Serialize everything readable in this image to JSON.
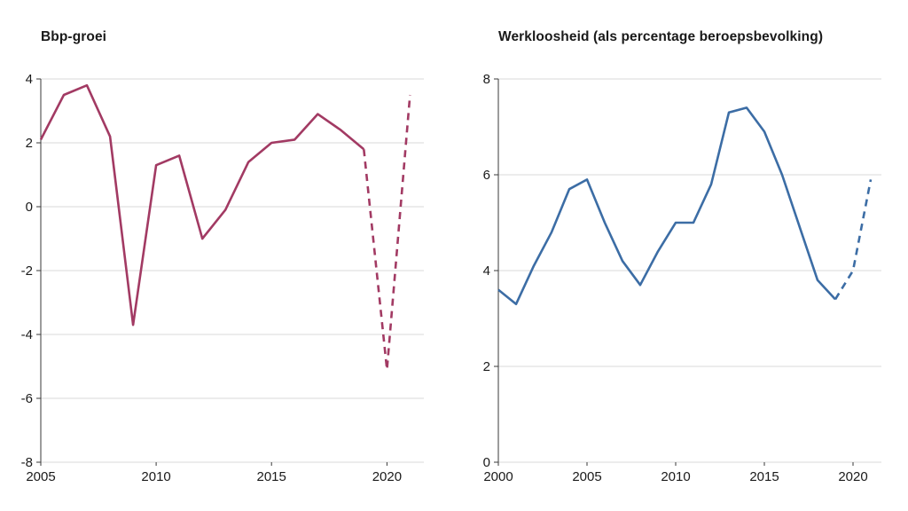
{
  "colors": {
    "background": "#ffffff",
    "grid": "#d9d9d9",
    "axis": "#3a3a3a",
    "text": "#1a1a1a"
  },
  "chart_data": [
    {
      "type": "line",
      "title": "Bbp-groei",
      "color": "#a23a63",
      "x": [
        2005,
        2006,
        2007,
        2008,
        2009,
        2010,
        2011,
        2012,
        2013,
        2014,
        2015,
        2016,
        2017,
        2018,
        2019,
        2020,
        2021
      ],
      "values": [
        2.1,
        3.5,
        3.8,
        2.2,
        -3.7,
        1.3,
        1.6,
        -1.0,
        -0.1,
        1.4,
        2.0,
        2.1,
        2.9,
        2.4,
        1.8,
        -5.1,
        3.5
      ],
      "dashed_from_x": 2019,
      "xlim": [
        2005,
        2021.6
      ],
      "ylim": [
        -8,
        4
      ],
      "yticks": [
        4,
        2,
        0,
        -2,
        -4,
        -6,
        -8
      ],
      "xticks": [
        2005,
        2010,
        2015,
        2020
      ],
      "grid": true,
      "legend": "none"
    },
    {
      "type": "line",
      "title": "Werkloosheid (als percentage beroepsbevolking)",
      "color": "#3c6da5",
      "x": [
        2000,
        2001,
        2002,
        2003,
        2004,
        2005,
        2006,
        2007,
        2008,
        2009,
        2010,
        2011,
        2012,
        2013,
        2014,
        2015,
        2016,
        2017,
        2018,
        2019,
        2020,
        2021
      ],
      "values": [
        3.6,
        3.3,
        4.1,
        4.8,
        5.7,
        5.9,
        5.0,
        4.2,
        3.7,
        4.4,
        5.0,
        5.0,
        5.8,
        7.3,
        7.4,
        6.9,
        6.0,
        4.9,
        3.8,
        3.4,
        4.0,
        5.9
      ],
      "dashed_from_x": 2019,
      "xlim": [
        2000,
        2021.6
      ],
      "ylim": [
        0,
        8
      ],
      "yticks": [
        8,
        6,
        4,
        2,
        0
      ],
      "xticks": [
        2000,
        2005,
        2010,
        2015,
        2020
      ],
      "grid": true,
      "legend": "none"
    }
  ]
}
